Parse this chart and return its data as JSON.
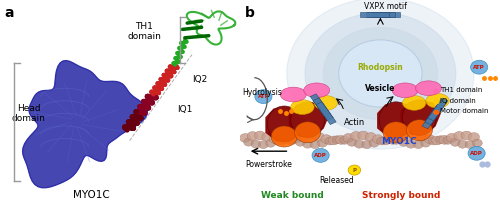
{
  "panel_a_label": "a",
  "panel_b_label": "b",
  "panel_a_annotations": {
    "head_domain": "Head\ndomain",
    "th1_domain": "TH1\ndomain",
    "iq1": "IQ1",
    "iq2": "IQ2",
    "myo1c": "MYO1C"
  },
  "panel_b_annotations": {
    "vxpx": "VXPX motif",
    "rhodopsin": "Rhodopsin",
    "vesicle": "Vesicle",
    "actin": "Actin",
    "hydrolysis": "Hydrolysis",
    "powerstroke": "Powerstroke",
    "released": "Released",
    "weak_bound": "Weak bound",
    "strongly_bound": "Strongly bound",
    "myo1c": "MYO1C",
    "th1_domain": "TH1 domain",
    "iq_domain": "IQ domain",
    "motor_domain": "Motor domain",
    "atp": "ATP",
    "adp": "ADP"
  },
  "colors": {
    "blue_protein": "#3333aa",
    "blue_protein_edge": "#1111aa",
    "green_protein": "#22aa22",
    "red_helix": "#cc2222",
    "dark_red_helix": "#880022",
    "actin_color": "#c8a090",
    "actin_edge": "#a07060",
    "vesicle_ring1": "#c8d8e8",
    "vesicle_ring2": "#b8cde0",
    "vesicle_ring3": "#a8c2d8",
    "vesicle_inner": "#ddeeff",
    "receptor_blue": "#4a7aaa",
    "receptor_edge": "#224466",
    "th1_color": "#ff69b4",
    "iq_color": "#ffcc00",
    "motor_color_left": "#cc4400",
    "motor_color_right": "#ff6600",
    "rhodopsin_text": "#99aa00",
    "weak_bound_text": "#228822",
    "strongly_bound_text": "#cc2200",
    "myo1c_text": "#2244cc",
    "atp_blue": "#66aadd",
    "atp_text": "#cc0000",
    "phosphate_yellow": "#ddaa00",
    "arrow_color": "#333333",
    "background": "#ffffff",
    "bracket_color": "#999999",
    "label_color": "#333333",
    "hydro_arrow": "#555555"
  },
  "fig_width": 5.0,
  "fig_height": 2.1,
  "dpi": 100
}
